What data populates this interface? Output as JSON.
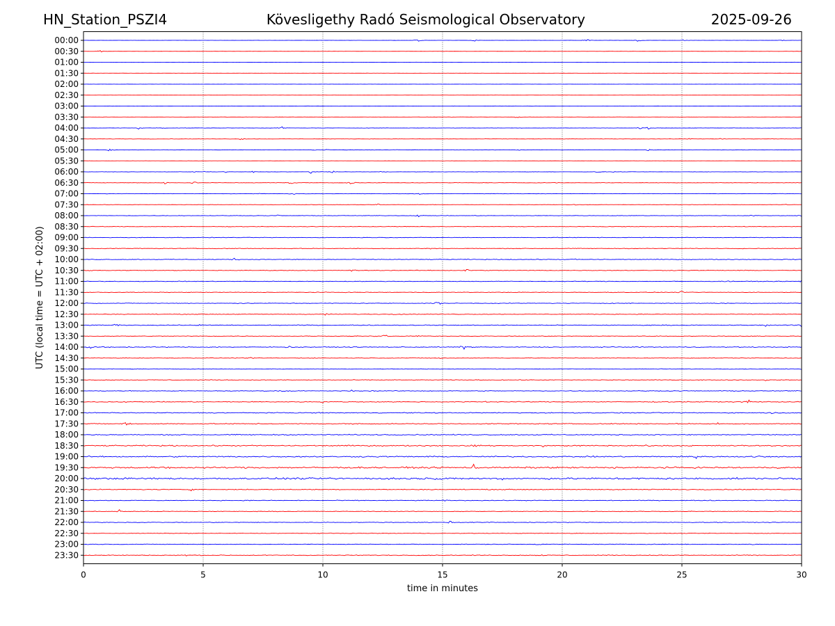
{
  "chart_data": {
    "type": "line",
    "title_left": "HN_Station_PSZI4",
    "title_center": "Kövesligethy Radó Seismological Observatory",
    "title_right": "2025-09-26",
    "xlabel": "time in minutes",
    "ylabel": "UTC (local time = UTC + 02:00)",
    "xlim": [
      0,
      30
    ],
    "xticks": [
      "0",
      "5",
      "10",
      "15",
      "20",
      "25",
      "30"
    ],
    "xtick_values": [
      0,
      5,
      10,
      15,
      20,
      25,
      30
    ],
    "grid": "vertical dotted at x = 5, 10, 15, 20, 25",
    "series_colors": [
      "#0000ff",
      "#ff0000"
    ],
    "rows": [
      {
        "label": "00:00",
        "noise": 0.15,
        "events": [
          [
            14.0,
            3
          ],
          [
            16.3,
            3
          ],
          [
            21.0,
            3
          ],
          [
            23.2,
            3
          ],
          [
            25.1,
            2
          ],
          [
            29.2,
            2
          ]
        ]
      },
      {
        "label": "00:30",
        "noise": 0.2,
        "events": [
          [
            0.7,
            2
          ],
          [
            18.5,
            1
          ]
        ]
      },
      {
        "label": "01:00",
        "noise": 0.15,
        "events": []
      },
      {
        "label": "01:30",
        "noise": 0.15,
        "events": []
      },
      {
        "label": "02:00",
        "noise": 0.15,
        "events": []
      },
      {
        "label": "02:30",
        "noise": 0.15,
        "events": []
      },
      {
        "label": "03:00",
        "noise": 0.2,
        "events": [
          [
            2.8,
            1
          ]
        ]
      },
      {
        "label": "03:30",
        "noise": 0.2,
        "events": [
          [
            18.1,
            3
          ]
        ]
      },
      {
        "label": "04:00",
        "noise": 0.3,
        "events": [
          [
            2.3,
            2
          ],
          [
            3.2,
            3
          ],
          [
            8.3,
            3
          ],
          [
            23.3,
            3
          ],
          [
            23.6,
            2
          ]
        ]
      },
      {
        "label": "04:30",
        "noise": 0.3,
        "events": [
          [
            6.6,
            3
          ],
          [
            25.2,
            3
          ],
          [
            26.6,
            2
          ]
        ]
      },
      {
        "label": "05:00",
        "noise": 0.35,
        "events": [
          [
            1.1,
            3
          ],
          [
            9.6,
            3
          ],
          [
            10.2,
            2
          ],
          [
            13.1,
            2
          ],
          [
            18.2,
            2
          ],
          [
            23.6,
            2
          ]
        ]
      },
      {
        "label": "05:30",
        "noise": 0.2,
        "events": []
      },
      {
        "label": "06:00",
        "noise": 0.3,
        "events": [
          [
            4.6,
            2
          ],
          [
            5.0,
            2
          ],
          [
            5.9,
            2
          ],
          [
            7.1,
            2
          ],
          [
            9.5,
            3
          ],
          [
            10.4,
            3
          ],
          [
            12.5,
            2
          ],
          [
            21.5,
            2
          ],
          [
            22.1,
            2
          ]
        ]
      },
      {
        "label": "06:30",
        "noise": 0.4,
        "events": [
          [
            3.4,
            3
          ],
          [
            4.6,
            3
          ],
          [
            8.7,
            4
          ],
          [
            11.2,
            5
          ],
          [
            19.8,
            2
          ]
        ]
      },
      {
        "label": "07:00",
        "noise": 0.35,
        "events": [
          [
            7.2,
            2
          ],
          [
            8.7,
            3
          ],
          [
            14.1,
            3
          ]
        ]
      },
      {
        "label": "07:30",
        "noise": 0.3,
        "events": [
          [
            12.3,
            2
          ],
          [
            20.6,
            2
          ],
          [
            29.3,
            2
          ]
        ]
      },
      {
        "label": "08:00",
        "noise": 0.45,
        "events": [
          [
            8.1,
            2
          ],
          [
            14.0,
            2
          ],
          [
            27.9,
            2
          ],
          [
            30.0,
            3
          ]
        ]
      },
      {
        "label": "08:30",
        "noise": 0.5,
        "events": []
      },
      {
        "label": "09:00",
        "noise": 0.55,
        "events": []
      },
      {
        "label": "09:30",
        "noise": 0.6,
        "events": [
          [
            14.5,
            2
          ]
        ]
      },
      {
        "label": "10:00",
        "noise": 0.65,
        "events": [
          [
            6.3,
            3
          ],
          [
            20.5,
            2
          ]
        ]
      },
      {
        "label": "10:30",
        "noise": 0.6,
        "events": [
          [
            0.2,
            3
          ],
          [
            11.2,
            3
          ],
          [
            16.0,
            4
          ]
        ]
      },
      {
        "label": "11:00",
        "noise": 0.6,
        "events": [
          [
            27.0,
            2
          ],
          [
            30.0,
            3
          ]
        ]
      },
      {
        "label": "11:30",
        "noise": 0.55,
        "events": [
          [
            22.0,
            2
          ],
          [
            25.0,
            2
          ]
        ]
      },
      {
        "label": "12:00",
        "noise": 0.6,
        "events": [
          [
            6.6,
            2
          ],
          [
            14.8,
            5
          ],
          [
            26.5,
            2
          ]
        ]
      },
      {
        "label": "12:30",
        "noise": 0.65,
        "events": [
          [
            10.1,
            3
          ],
          [
            13.2,
            2
          ]
        ]
      },
      {
        "label": "13:00",
        "noise": 0.75,
        "events": [
          [
            1.3,
            4
          ],
          [
            4.8,
            2
          ],
          [
            28.5,
            3
          ],
          [
            30.0,
            4
          ]
        ]
      },
      {
        "label": "13:30",
        "noise": 0.6,
        "events": [
          [
            12.2,
            4
          ],
          [
            12.6,
            3
          ],
          [
            14.0,
            2
          ]
        ]
      },
      {
        "label": "14:00",
        "noise": 0.75,
        "events": [
          [
            0.3,
            4
          ],
          [
            1.0,
            3
          ],
          [
            8.6,
            3
          ],
          [
            15.9,
            6
          ],
          [
            23.2,
            2
          ]
        ]
      },
      {
        "label": "14:30",
        "noise": 0.55,
        "events": [
          [
            7.1,
            2
          ],
          [
            14.9,
            3
          ]
        ]
      },
      {
        "label": "15:00",
        "noise": 0.55,
        "events": [
          [
            30.0,
            2
          ]
        ]
      },
      {
        "label": "15:30",
        "noise": 0.65,
        "events": [
          [
            12.5,
            2
          ],
          [
            28.5,
            2
          ]
        ]
      },
      {
        "label": "16:00",
        "noise": 0.7,
        "events": [
          [
            8.3,
            2
          ],
          [
            11.2,
            2
          ],
          [
            25.2,
            2
          ]
        ]
      },
      {
        "label": "16:30",
        "noise": 0.8,
        "events": [
          [
            10.0,
            2
          ],
          [
            16.8,
            2
          ],
          [
            27.8,
            5
          ]
        ]
      },
      {
        "label": "17:00",
        "noise": 0.85,
        "events": [
          [
            28.7,
            3
          ]
        ]
      },
      {
        "label": "17:30",
        "noise": 0.9,
        "events": [
          [
            1.8,
            5
          ],
          [
            26.5,
            3
          ]
        ]
      },
      {
        "label": "18:00",
        "noise": 1.0,
        "events": []
      },
      {
        "label": "18:30",
        "noise": 1.1,
        "events": [
          [
            16.3,
            3
          ],
          [
            19.2,
            3
          ],
          [
            23.5,
            2
          ]
        ]
      },
      {
        "label": "19:00",
        "noise": 1.2,
        "events": [
          [
            25.6,
            6
          ],
          [
            28.3,
            3
          ]
        ]
      },
      {
        "label": "19:30",
        "noise": 1.5,
        "events": [
          [
            3.5,
            6
          ],
          [
            16.3,
            7
          ],
          [
            21.8,
            3
          ],
          [
            30.0,
            3
          ]
        ]
      },
      {
        "label": "20:00",
        "noise": 1.7,
        "events": [
          [
            0.3,
            3
          ],
          [
            13.2,
            3
          ],
          [
            15.0,
            3
          ],
          [
            17.5,
            3
          ],
          [
            22.8,
            3
          ],
          [
            29.8,
            3
          ]
        ]
      },
      {
        "label": "20:30",
        "noise": 0.8,
        "events": [
          [
            4.5,
            2
          ],
          [
            24.3,
            2
          ]
        ]
      },
      {
        "label": "21:00",
        "noise": 0.7,
        "events": [
          [
            15.1,
            2
          ]
        ]
      },
      {
        "label": "21:30",
        "noise": 0.6,
        "events": [
          [
            1.5,
            5
          ],
          [
            22.5,
            1
          ]
        ]
      },
      {
        "label": "22:00",
        "noise": 0.6,
        "events": [
          [
            15.3,
            4
          ]
        ]
      },
      {
        "label": "22:30",
        "noise": 0.5,
        "events": [
          [
            24.6,
            1
          ]
        ]
      },
      {
        "label": "23:00",
        "noise": 0.6,
        "events": [
          [
            19.0,
            2
          ],
          [
            28.0,
            2
          ]
        ]
      },
      {
        "label": "23:30",
        "noise": 0.7,
        "events": [
          [
            4.3,
            2
          ],
          [
            8.9,
            2
          ],
          [
            19.1,
            3
          ],
          [
            27.0,
            2
          ]
        ]
      }
    ]
  }
}
